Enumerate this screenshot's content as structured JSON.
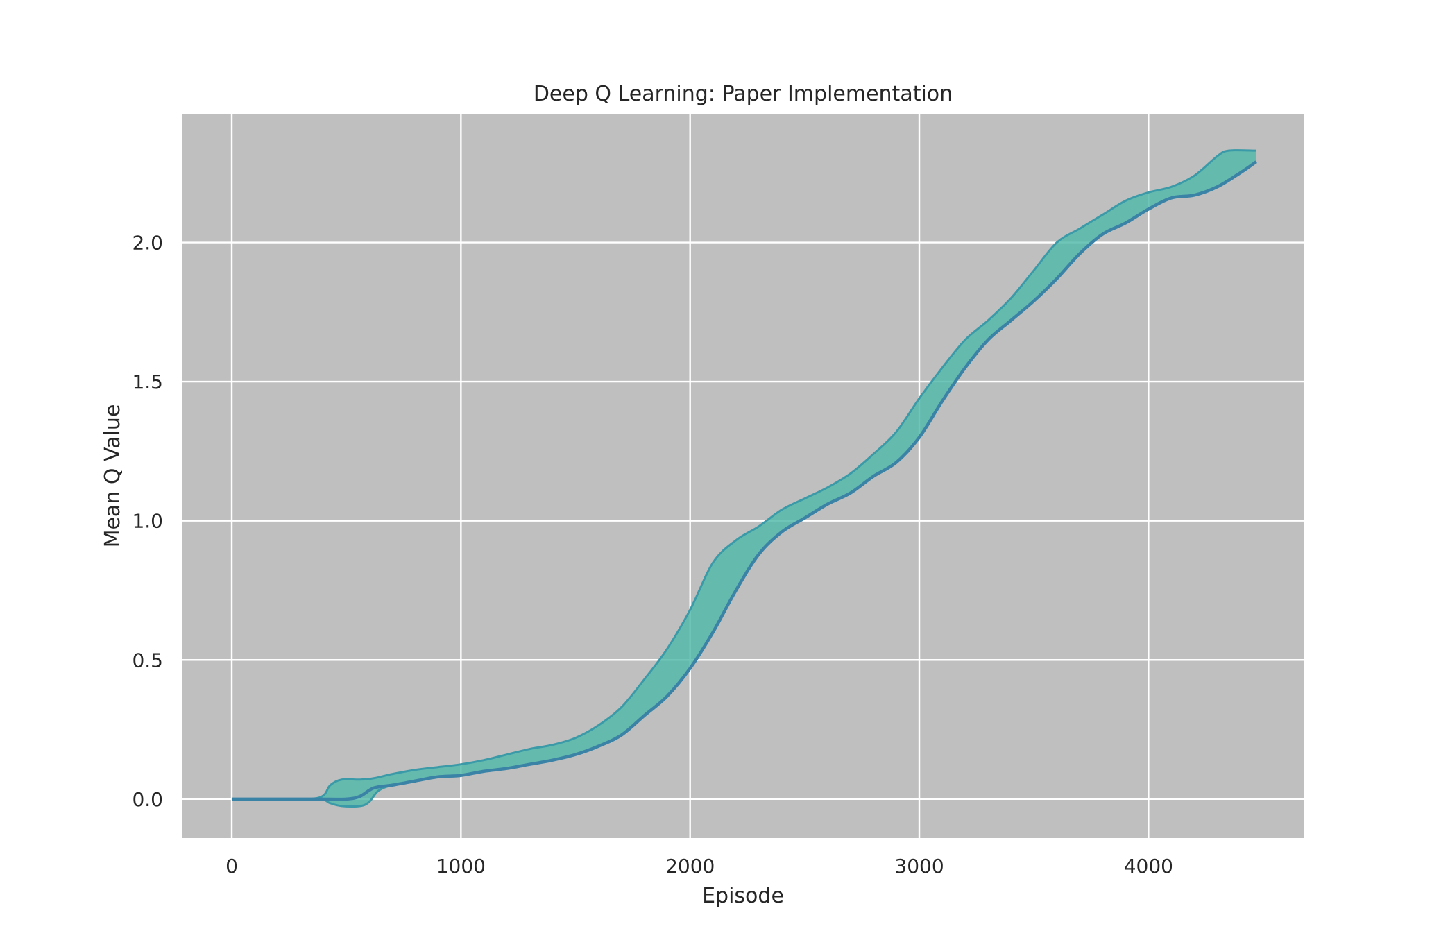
{
  "chart_data": {
    "type": "line",
    "title": "Deep Q Learning: Paper Implementation",
    "xlabel": "Episode",
    "ylabel": "Mean Q Value",
    "xlim": [
      -215,
      4680
    ],
    "ylim": [
      -0.14,
      2.46
    ],
    "xticks": [
      0,
      1000,
      2000,
      3000,
      4000
    ],
    "yticks": [
      0.0,
      0.5,
      1.0,
      1.5,
      2.0
    ],
    "xtick_labels": [
      "0",
      "1000",
      "2000",
      "3000",
      "4000"
    ],
    "ytick_labels": [
      "0.0",
      "0.5",
      "1.0",
      "1.5",
      "2.0"
    ],
    "grid": true,
    "legend": "none",
    "colors": {
      "plot_bg": "#bfbfbf",
      "grid": "#ffffff",
      "line": "#3a82a6",
      "band_fill": "#4fb8a8",
      "band_edge": "#3a9aa8"
    },
    "series": [
      {
        "role": "mean",
        "x": [
          0,
          200,
          380,
          500,
          560,
          620,
          700,
          800,
          900,
          1000,
          1100,
          1200,
          1300,
          1400,
          1500,
          1600,
          1700,
          1800,
          1900,
          2000,
          2100,
          2200,
          2300,
          2400,
          2500,
          2600,
          2700,
          2800,
          2900,
          3000,
          3100,
          3200,
          3300,
          3400,
          3500,
          3600,
          3700,
          3800,
          3900,
          4000,
          4100,
          4200,
          4300,
          4400,
          4470
        ],
        "values": [
          0.0,
          0.0,
          0.0,
          0.0,
          0.01,
          0.04,
          0.05,
          0.065,
          0.08,
          0.085,
          0.1,
          0.11,
          0.125,
          0.14,
          0.16,
          0.19,
          0.23,
          0.3,
          0.37,
          0.47,
          0.6,
          0.75,
          0.88,
          0.96,
          1.01,
          1.06,
          1.1,
          1.16,
          1.21,
          1.3,
          1.43,
          1.55,
          1.65,
          1.72,
          1.79,
          1.87,
          1.96,
          2.03,
          2.07,
          2.12,
          2.16,
          2.17,
          2.2,
          2.25,
          2.29
        ]
      },
      {
        "role": "band_upper",
        "x": [
          0,
          200,
          380,
          430,
          480,
          560,
          620,
          700,
          800,
          900,
          1000,
          1100,
          1200,
          1300,
          1400,
          1500,
          1600,
          1700,
          1800,
          1900,
          2000,
          2100,
          2200,
          2300,
          2400,
          2500,
          2600,
          2700,
          2800,
          2900,
          3000,
          3100,
          3200,
          3300,
          3400,
          3500,
          3600,
          3700,
          3800,
          3900,
          4000,
          4100,
          4200,
          4300,
          4350,
          4470
        ],
        "values": [
          0.0,
          0.0,
          0.005,
          0.05,
          0.07,
          0.07,
          0.075,
          0.09,
          0.105,
          0.115,
          0.125,
          0.14,
          0.16,
          0.18,
          0.195,
          0.22,
          0.265,
          0.33,
          0.43,
          0.54,
          0.68,
          0.85,
          0.93,
          0.98,
          1.04,
          1.08,
          1.12,
          1.17,
          1.24,
          1.32,
          1.44,
          1.55,
          1.65,
          1.72,
          1.8,
          1.9,
          2.0,
          2.05,
          2.1,
          2.15,
          2.18,
          2.2,
          2.24,
          2.31,
          2.33,
          2.33
        ]
      },
      {
        "role": "band_lower",
        "x": [
          0,
          200,
          380,
          430,
          480,
          560,
          600,
          640,
          700,
          800,
          900,
          1000,
          1100,
          1200,
          1300,
          1400,
          1500,
          1600,
          1700,
          1800,
          1900,
          2000,
          2100,
          2200,
          2300,
          2400,
          2500,
          2600,
          2700,
          2800,
          2900,
          3000,
          3100,
          3200,
          3300,
          3400,
          3500,
          3600,
          3700,
          3800,
          3900,
          4000,
          4100,
          4200,
          4300,
          4400,
          4470
        ],
        "values": [
          0.0,
          0.0,
          0.0,
          -0.015,
          -0.025,
          -0.025,
          -0.01,
          0.03,
          0.05,
          0.065,
          0.08,
          0.085,
          0.1,
          0.11,
          0.125,
          0.14,
          0.16,
          0.19,
          0.23,
          0.3,
          0.37,
          0.47,
          0.6,
          0.75,
          0.88,
          0.96,
          1.01,
          1.06,
          1.1,
          1.16,
          1.21,
          1.3,
          1.43,
          1.55,
          1.65,
          1.72,
          1.79,
          1.87,
          1.96,
          2.03,
          2.07,
          2.12,
          2.16,
          2.17,
          2.2,
          2.25,
          2.29
        ]
      }
    ]
  }
}
